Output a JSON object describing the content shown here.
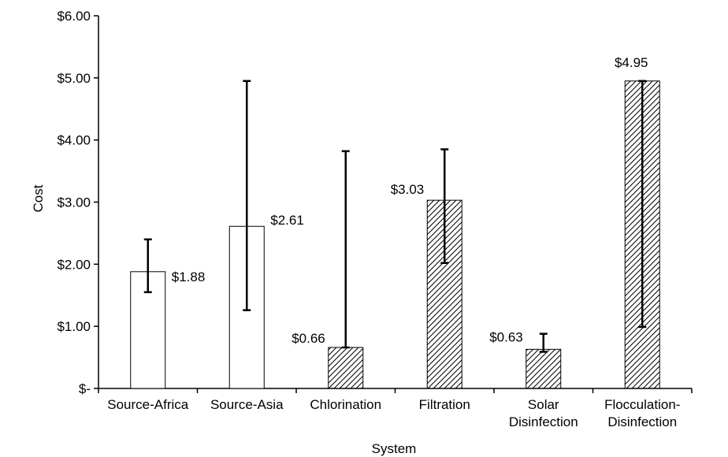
{
  "chart_data": {
    "type": "bar",
    "title": "",
    "xlabel": "System",
    "ylabel": "Cost",
    "ylim": [
      0,
      6
    ],
    "y_ticks": [
      {
        "value": 0,
        "label": "$-"
      },
      {
        "value": 1,
        "label": "$1.00"
      },
      {
        "value": 2,
        "label": "$2.00"
      },
      {
        "value": 3,
        "label": "$3.00"
      },
      {
        "value": 4,
        "label": "$4.00"
      },
      {
        "value": 5,
        "label": "$5.00"
      },
      {
        "value": 6,
        "label": "$6.00"
      }
    ],
    "grid": false,
    "legend": "none",
    "categories": [
      {
        "lines": [
          "Source-Africa"
        ]
      },
      {
        "lines": [
          "Source-Asia"
        ]
      },
      {
        "lines": [
          "Chlorination"
        ]
      },
      {
        "lines": [
          "Filtration"
        ]
      },
      {
        "lines": [
          "Solar",
          "Disinfection"
        ]
      },
      {
        "lines": [
          "Flocculation-",
          "Disinfection"
        ]
      }
    ],
    "bars": [
      {
        "value": 1.88,
        "label": "$1.88",
        "err_low": 1.55,
        "err_high": 2.4,
        "pattern": "open"
      },
      {
        "value": 2.61,
        "label": "$2.61",
        "err_low": 1.26,
        "err_high": 4.95,
        "pattern": "open"
      },
      {
        "value": 0.66,
        "label": "$0.66",
        "err_low": 0.66,
        "err_high": 3.82,
        "pattern": "hatched"
      },
      {
        "value": 3.03,
        "label": "$3.03",
        "err_low": 2.02,
        "err_high": 3.85,
        "pattern": "hatched"
      },
      {
        "value": 0.63,
        "label": "$0.63",
        "err_low": 0.59,
        "err_high": 0.88,
        "pattern": "hatched"
      },
      {
        "value": 4.95,
        "label": "$4.95",
        "err_low": 0.99,
        "err_high": 4.95,
        "pattern": "hatched"
      }
    ],
    "colors": {
      "bar_fill": "#ffffff",
      "stroke": "#000000",
      "hatch": "#000000"
    }
  }
}
